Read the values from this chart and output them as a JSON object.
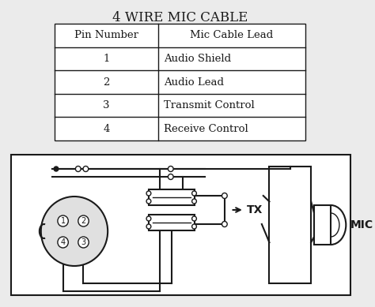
{
  "title": "4 WIRE MIC CABLE",
  "title_fontsize": 12,
  "table_headers": [
    "Pin Number",
    "Mic Cable Lead"
  ],
  "table_rows": [
    [
      "1",
      "Audio Shield"
    ],
    [
      "2",
      "Audio Lead"
    ],
    [
      "3",
      "Transmit Control"
    ],
    [
      "4",
      "Receive Control"
    ]
  ],
  "bg_color": "#ebebeb",
  "line_color": "#1a1a1a",
  "text_color": "#1a1a1a",
  "fig_w": 4.74,
  "fig_h": 3.89,
  "dpi": 100
}
